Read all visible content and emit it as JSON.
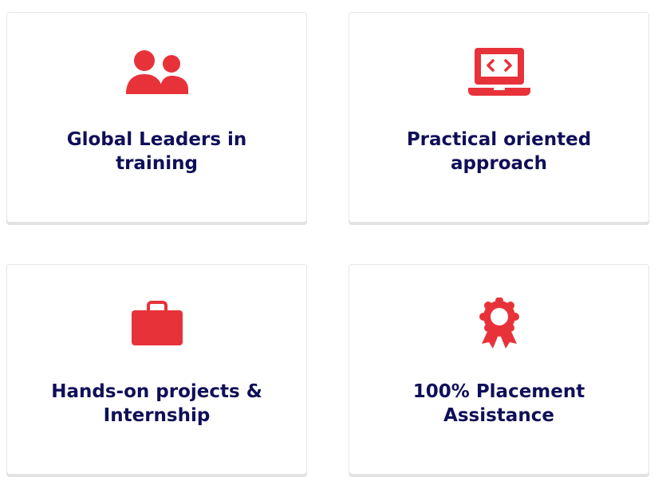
{
  "features": {
    "accent_color": "#e8323a",
    "title_color": "#0f0f58",
    "items": [
      {
        "title": "Global Leaders in training",
        "icon": "users-icon"
      },
      {
        "title": "Practical oriented approach",
        "icon": "laptop-code-icon"
      },
      {
        "title": "Hands-on projects & Internship",
        "icon": "briefcase-icon"
      },
      {
        "title": "100% Placement Assistance",
        "icon": "award-ribbon-icon"
      }
    ]
  }
}
